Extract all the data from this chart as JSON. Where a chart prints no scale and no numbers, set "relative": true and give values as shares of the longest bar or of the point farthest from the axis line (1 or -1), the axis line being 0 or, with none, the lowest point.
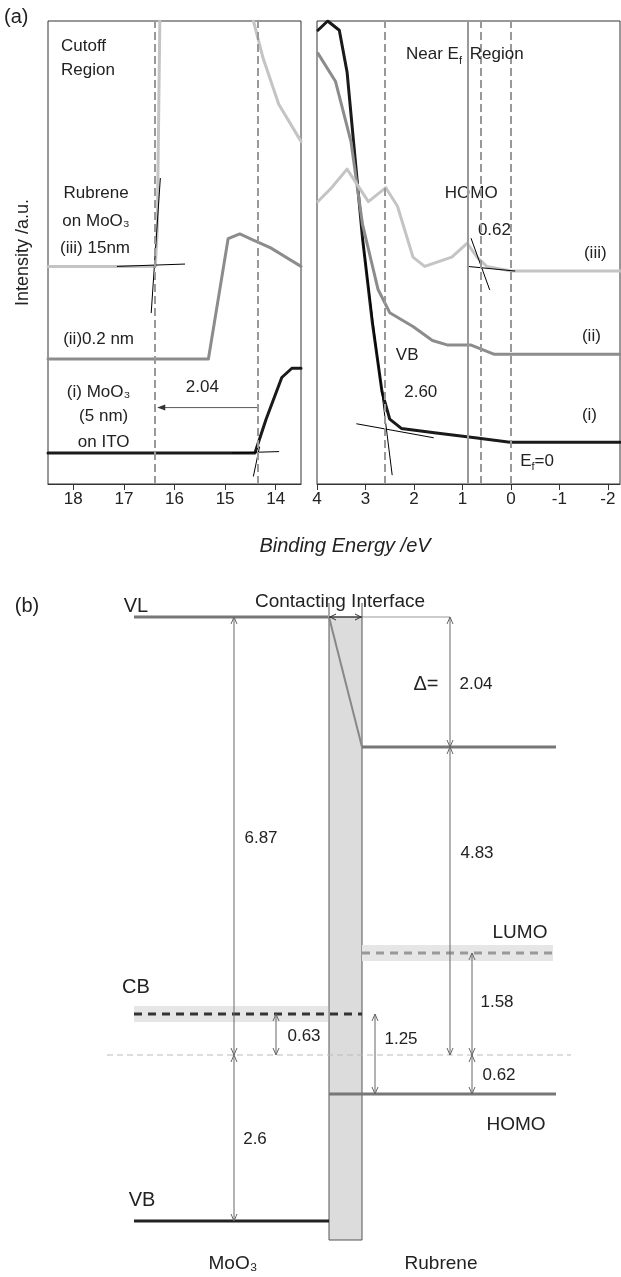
{
  "chart_data": [
    {
      "type": "line",
      "title": "Cutoff Region",
      "ylabel": "Intensity /a.u.",
      "relative": true,
      "xlim": [
        18.5,
        13.5
      ],
      "xticks": [
        18,
        17,
        16,
        15,
        14
      ],
      "grid": false,
      "annotations": [
        "(a)",
        "Rubrene",
        "on MoO₃",
        "(iii) 15nm",
        "(ii)0.2 nm",
        "(i) MoO₃",
        "(5 nm)",
        "on ITO",
        "2.04"
      ],
      "ref_lines": [
        {
          "axis": "x",
          "value": 16.4,
          "color": "#999999",
          "line_style": "dashed"
        },
        {
          "axis": "x",
          "value": 14.36,
          "color": "#999999",
          "line_style": "dashed"
        }
      ],
      "series": [
        {
          "color": "#1a1a1a",
          "x": [
            18.5,
            14.41,
            14.19,
            13.88,
            13.68,
            13.5
          ],
          "values": [
            0.067,
            0.067,
            0.14,
            0.23,
            0.25,
            0.25
          ]
        },
        {
          "color": "#8c8c8c",
          "x": [
            18.5,
            15.33,
            15.18,
            14.94,
            14.71,
            14.1,
            13.5
          ],
          "values": [
            0.27,
            0.27,
            0.37,
            0.53,
            0.54,
            0.51,
            0.47
          ]
        },
        {
          "color": "#c4c4c4",
          "x": [
            18.5,
            16.38,
            16.34,
            16.29,
            16.2,
            14.44,
            14.25,
            13.94,
            13.5
          ],
          "values": [
            0.47,
            0.47,
            0.55,
            1.0,
            null,
            1.0,
            0.92,
            0.82,
            0.74
          ]
        },
        {
          "color": "#000000",
          "x": [
            16.28,
            16.46
          ],
          "values": [
            0.66,
            0.37
          ]
        },
        {
          "color": "#000000",
          "x": [
            17.13,
            15.8
          ],
          "values": [
            0.47,
            0.475
          ]
        },
        {
          "color": "#000000",
          "x": [
            14.44,
            14.32
          ],
          "values": [
            0.017,
            0.08
          ]
        },
        {
          "color": "#000000",
          "x": [
            14.86,
            13.94
          ],
          "values": [
            0.067,
            0.07
          ]
        }
      ]
    },
    {
      "type": "line",
      "title": "Near E$_{f}$ Region",
      "xlabel": "Binding Energy /eV",
      "relative": true,
      "xlim": [
        4,
        -2.25
      ],
      "xticks": [
        4,
        3,
        2,
        1,
        0,
        -1,
        -2
      ],
      "grid": false,
      "annotations": [
        "HOMO",
        "0.62",
        "VB",
        "2.60",
        "(iii)",
        "(ii)",
        "(i)",
        "E$_{f}$=0"
      ],
      "ref_lines": [
        {
          "axis": "x",
          "value": 2.6,
          "color": "#999999",
          "line_style": "dashed"
        },
        {
          "axis": "x",
          "value": 0.9,
          "color": "#999999",
          "line_style": "solid"
        },
        {
          "axis": "x",
          "value": 0.62,
          "color": "#999999",
          "line_style": "dashed"
        },
        {
          "axis": "x",
          "value": 0,
          "color": "#999999",
          "line_style": "dashed"
        }
      ],
      "series": [
        {
          "color": "#1a1a1a",
          "x": [
            3.98,
            3.78,
            3.54,
            3.38,
            3.22,
            3.06,
            2.86,
            2.66,
            2.5,
            2.26,
            1.54,
            0.74,
            0,
            -2.25
          ],
          "values": [
            0.98,
            1.0,
            0.98,
            0.89,
            0.71,
            0.53,
            0.35,
            0.2,
            0.14,
            0.12,
            0.11,
            0.1,
            0.09,
            0.09
          ]
        },
        {
          "color": "#8c8c8c",
          "x": [
            3.98,
            3.62,
            3.3,
            3.06,
            2.74,
            2.5,
            2.02,
            1.62,
            1.3,
            0.82,
            0.34,
            0,
            -2.25
          ],
          "values": [
            0.93,
            0.87,
            0.74,
            0.56,
            0.42,
            0.37,
            0.34,
            0.31,
            0.3,
            0.3,
            0.28,
            0.28,
            0.28
          ]
        },
        {
          "color": "#c4c4c4",
          "x": [
            3.98,
            3.7,
            3.38,
            2.94,
            2.58,
            2.34,
            2.02,
            1.78,
            1.22,
            0.9,
            0.7,
            0.5,
            0,
            -2.25
          ],
          "values": [
            0.61,
            0.64,
            0.68,
            0.61,
            0.64,
            0.6,
            0.49,
            0.47,
            0.49,
            0.52,
            0.49,
            0.47,
            0.46,
            0.46
          ]
        },
        {
          "color": "#000000",
          "x": [
            3.06,
            2.45
          ],
          "values": [
            0.53,
            0.02
          ]
        },
        {
          "color": "#000000",
          "x": [
            3.18,
            1.6
          ],
          "values": [
            0.13,
            0.1
          ]
        },
        {
          "color": "#000000",
          "x": [
            0.82,
            0.44
          ],
          "values": [
            0.53,
            0.42
          ]
        },
        {
          "color": "#000000",
          "x": [
            0.9,
            -0.08
          ],
          "values": [
            0.47,
            0.46
          ]
        }
      ]
    },
    {
      "type": "other",
      "annotations": [
        "(b)",
        "VL",
        "Contacting Interface",
        "Δ=",
        "2.04",
        "6.87",
        "4.83",
        "LUMO",
        "CB",
        "0.63",
        "1.25",
        "1.58",
        "0.62",
        "HOMO",
        "2.6",
        "VB",
        "MoO₃",
        "Rubrene"
      ]
    }
  ]
}
